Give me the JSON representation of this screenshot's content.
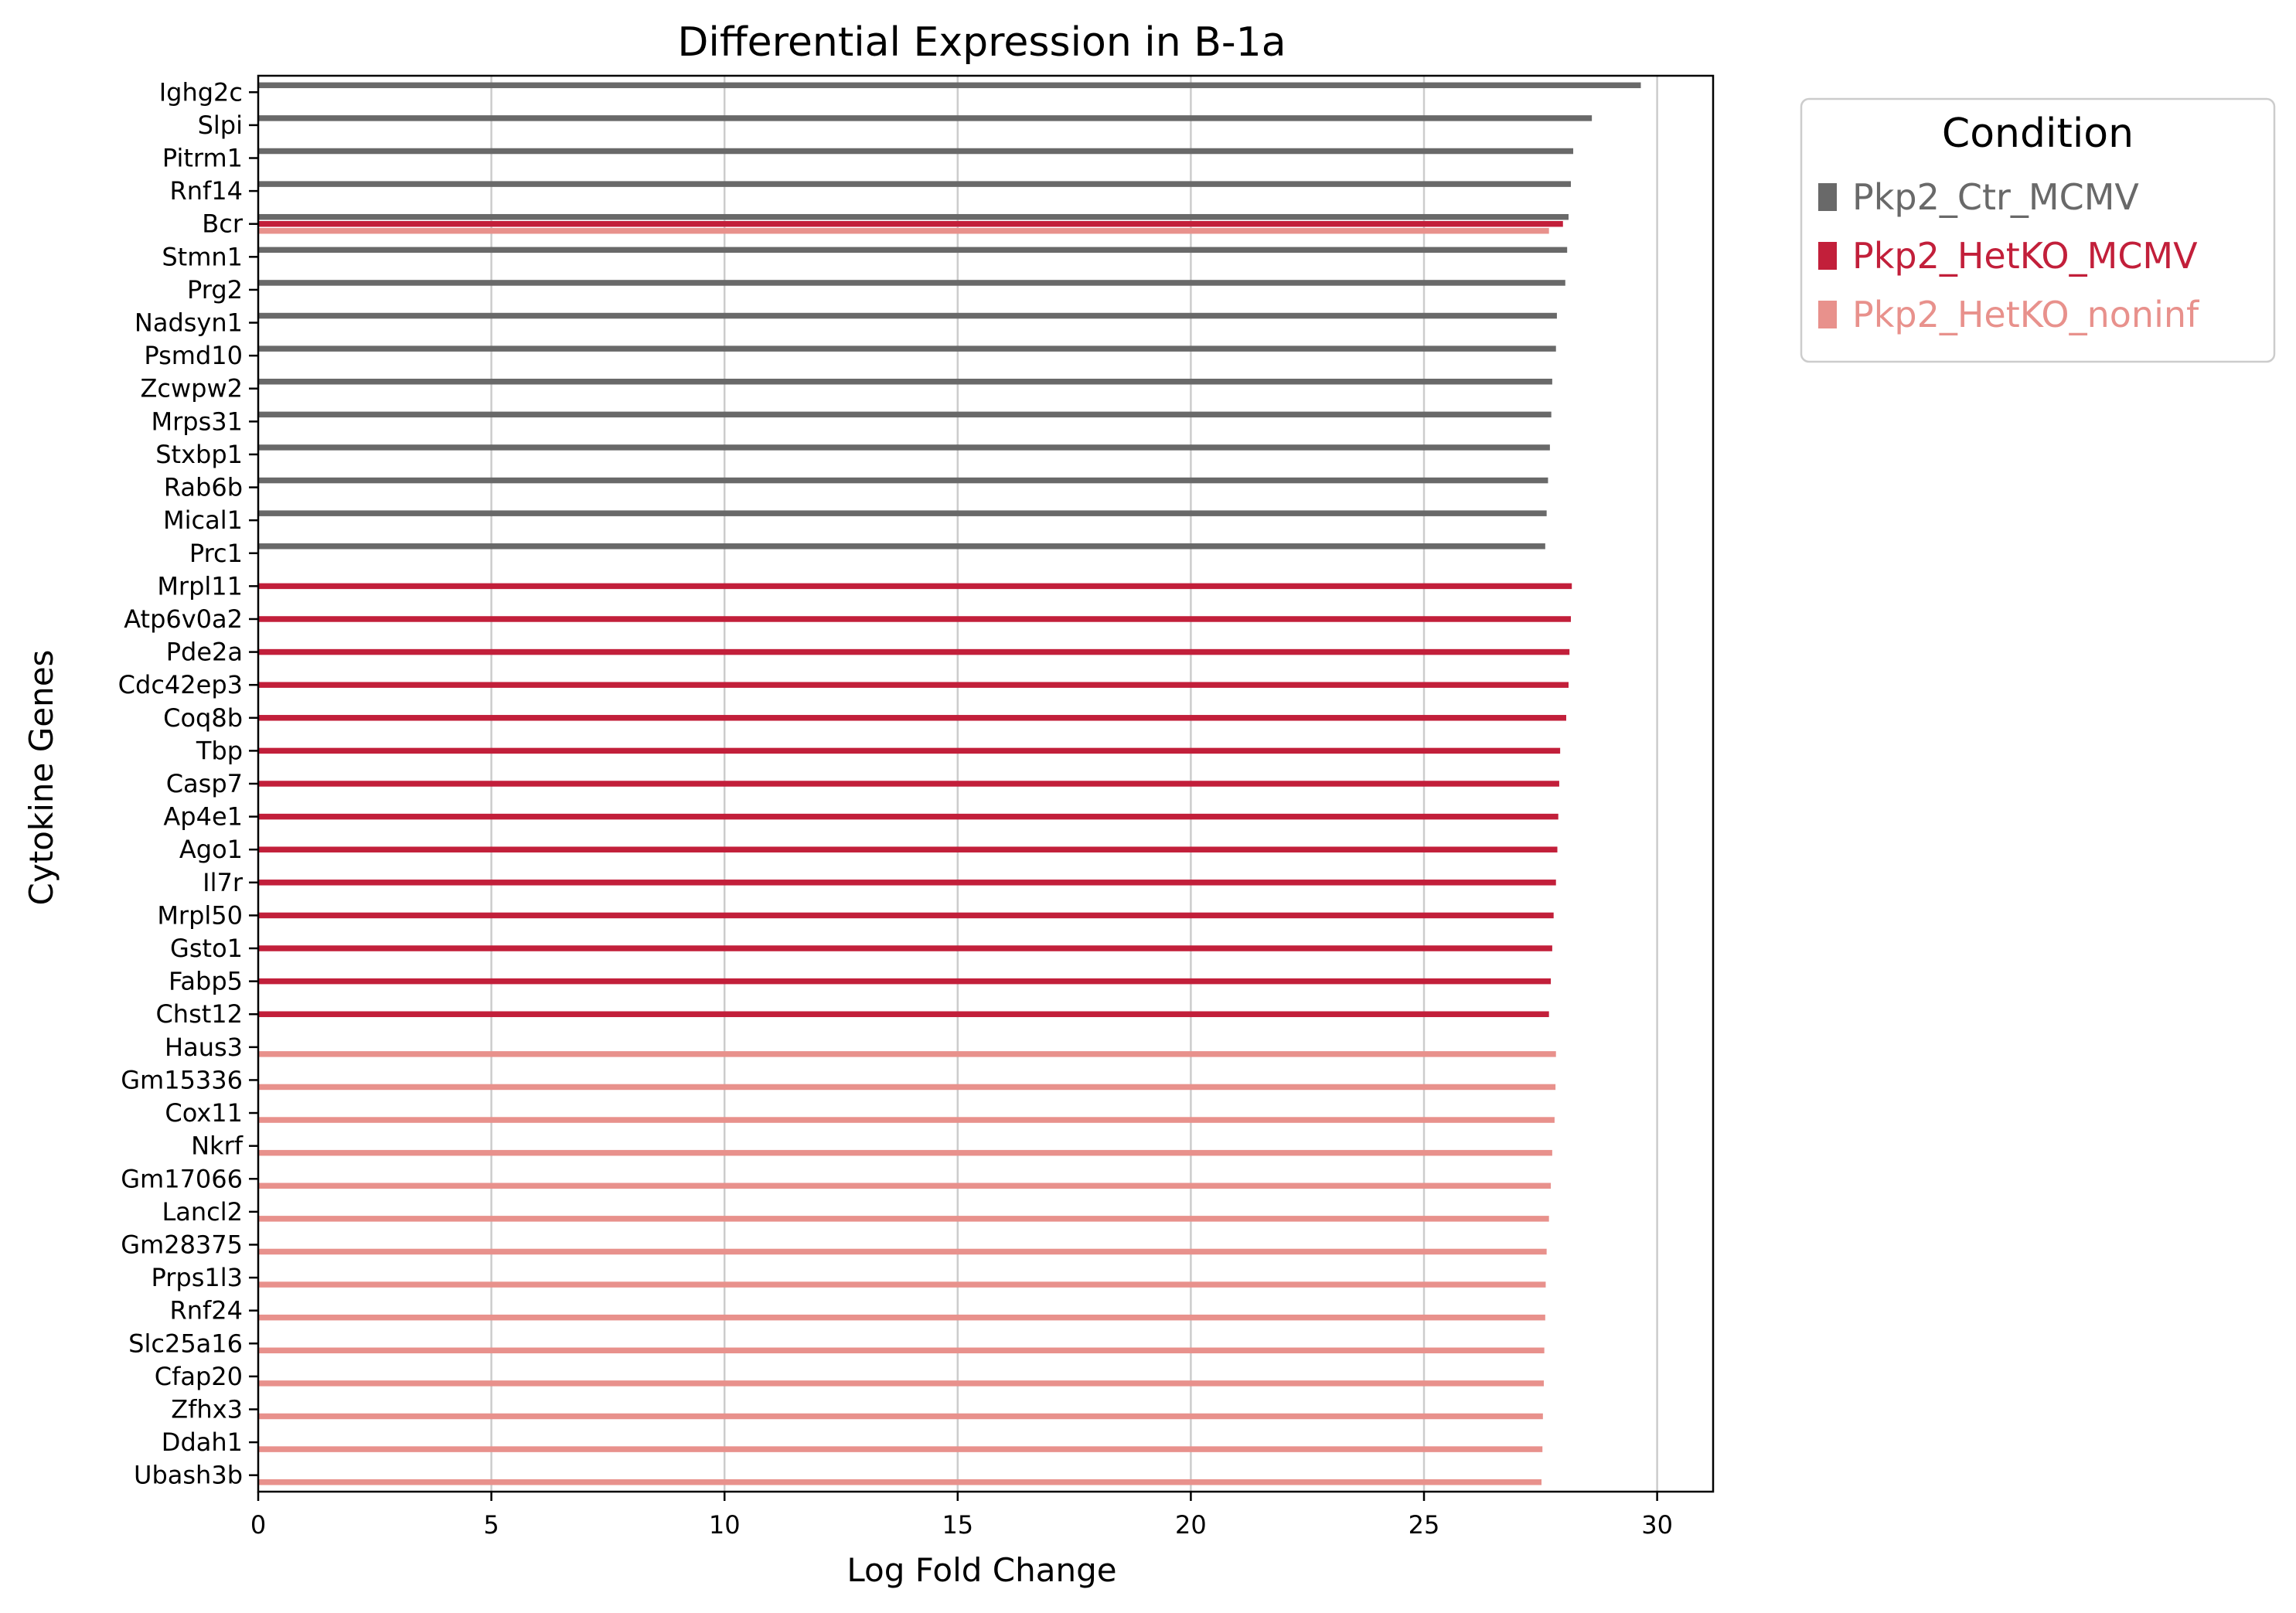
{
  "chart_data": {
    "type": "bar",
    "orientation": "horizontal",
    "title": "Differential Expression in B-1a",
    "xlabel": "Log Fold Change",
    "ylabel": "Cytokine Genes",
    "xlim": [
      0,
      31.2
    ],
    "xticks": [
      0,
      5,
      10,
      15,
      20,
      25,
      30
    ],
    "grid": "vertical",
    "legend": {
      "title": "Condition",
      "placement": "outside-top-right",
      "entries": [
        "Pkp2_Ctr_MCMV",
        "Pkp2_HetKO_MCMV",
        "Pkp2_HetKO_noninf"
      ]
    },
    "colors": {
      "Pkp2_Ctr_MCMV": "#696969",
      "Pkp2_HetKO_MCMV": "#c21f3a",
      "Pkp2_HetKO_noninf": "#e8918c"
    },
    "categories": [
      "Ighg2c",
      "Slpi",
      "Pitrm1",
      "Rnf14",
      "Bcr",
      "Stmn1",
      "Prg2",
      "Nadsyn1",
      "Psmd10",
      "Zcwpw2",
      "Mrps31",
      "Stxbp1",
      "Rab6b",
      "Mical1",
      "Prc1",
      "Mrpl11",
      "Atp6v0a2",
      "Pde2a",
      "Cdc42ep3",
      "Coq8b",
      "Tbp",
      "Casp7",
      "Ap4e1",
      "Ago1",
      "Il7r",
      "Mrpl50",
      "Gsto1",
      "Fabp5",
      "Chst12",
      "Haus3",
      "Gm15336",
      "Cox11",
      "Nkrf",
      "Gm17066",
      "Lancl2",
      "Gm28375",
      "Prps1l3",
      "Rnf24",
      "Slc25a16",
      "Cfap20",
      "Zfhx3",
      "Ddah1",
      "Ubash3b"
    ],
    "series": [
      {
        "name": "Pkp2_Ctr_MCMV",
        "values": [
          29.65,
          28.6,
          28.2,
          28.15,
          28.1,
          28.07,
          28.03,
          27.85,
          27.83,
          27.75,
          27.73,
          27.7,
          27.66,
          27.63,
          27.6,
          null,
          null,
          null,
          null,
          null,
          null,
          null,
          null,
          null,
          null,
          null,
          null,
          null,
          null,
          null,
          null,
          null,
          null,
          null,
          null,
          null,
          null,
          null,
          null,
          null,
          null,
          null,
          null
        ]
      },
      {
        "name": "Pkp2_HetKO_MCMV",
        "values": [
          null,
          null,
          null,
          null,
          27.98,
          null,
          null,
          null,
          null,
          null,
          null,
          null,
          null,
          null,
          null,
          28.17,
          28.15,
          28.12,
          28.1,
          28.05,
          27.92,
          27.9,
          27.88,
          27.86,
          27.83,
          27.78,
          27.75,
          27.72,
          27.68,
          null,
          null,
          null,
          null,
          null,
          null,
          null,
          null,
          null,
          null,
          null,
          null,
          null,
          null
        ]
      },
      {
        "name": "Pkp2_HetKO_noninf",
        "values": [
          null,
          null,
          null,
          null,
          27.68,
          null,
          null,
          null,
          null,
          null,
          null,
          null,
          null,
          null,
          null,
          null,
          null,
          null,
          null,
          null,
          null,
          null,
          null,
          null,
          null,
          null,
          null,
          null,
          null,
          27.83,
          27.82,
          27.8,
          27.75,
          27.72,
          27.68,
          27.63,
          27.61,
          27.6,
          27.58,
          27.57,
          27.55,
          27.54,
          27.52
        ]
      }
    ]
  }
}
